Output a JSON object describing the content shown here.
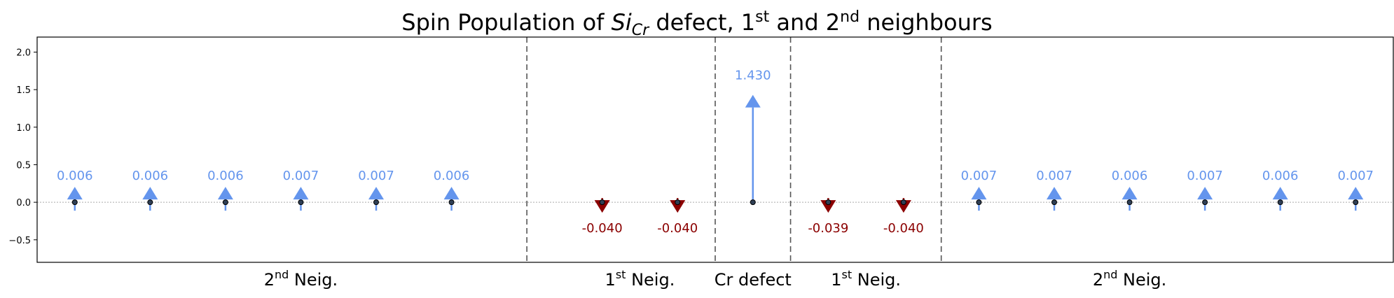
{
  "chart_data": {
    "type": "scatter",
    "title": {
      "prefix": "Spin Population of ",
      "defect_main": "Si",
      "defect_sub": "Cr",
      "middle": " defect, 1",
      "sup1": "st",
      "and_text": " and 2",
      "sup2": "nd",
      "suffix": " neighbours"
    },
    "ylim": [
      -0.8,
      2.2
    ],
    "yticks": [
      {
        "value": 2.0,
        "label": "2.0"
      },
      {
        "value": 1.5,
        "label": "1.5"
      },
      {
        "value": 1.0,
        "label": "1.0"
      },
      {
        "value": 0.5,
        "label": "0.5"
      },
      {
        "value": 0.0,
        "label": "0.0"
      },
      {
        "value": -0.5,
        "label": "−0.5"
      }
    ],
    "xlim": [
      -0.5,
      17.5
    ],
    "points": [
      {
        "x": 0,
        "value": 0.006,
        "label": "0.006"
      },
      {
        "x": 1,
        "value": 0.006,
        "label": "0.006"
      },
      {
        "x": 2,
        "value": 0.006,
        "label": "0.006"
      },
      {
        "x": 3,
        "value": 0.007,
        "label": "0.007"
      },
      {
        "x": 4,
        "value": 0.007,
        "label": "0.007"
      },
      {
        "x": 5,
        "value": 0.006,
        "label": "0.006"
      },
      {
        "x": 7,
        "value": -0.04,
        "label": "-0.040"
      },
      {
        "x": 8,
        "value": -0.04,
        "label": "-0.040"
      },
      {
        "x": 9,
        "value": 1.43,
        "label": "1.430"
      },
      {
        "x": 10,
        "value": -0.039,
        "label": "-0.039"
      },
      {
        "x": 11,
        "value": -0.04,
        "label": "-0.040"
      },
      {
        "x": 12,
        "value": 0.007,
        "label": "0.007"
      },
      {
        "x": 13,
        "value": 0.007,
        "label": "0.007"
      },
      {
        "x": 14,
        "value": 0.006,
        "label": "0.006"
      },
      {
        "x": 15,
        "value": 0.007,
        "label": "0.007"
      },
      {
        "x": 16,
        "value": 0.006,
        "label": "0.006"
      },
      {
        "x": 17,
        "value": 0.007,
        "label": "0.007"
      }
    ],
    "separators": [
      6,
      8.5,
      9.5,
      11.5
    ],
    "regions": [
      {
        "x": 3.0,
        "main": "2",
        "sup": "nd",
        "rest": " Neig."
      },
      {
        "x": 7.5,
        "main": "1",
        "sup": "st",
        "rest": " Neig."
      },
      {
        "x": 9.0,
        "main": "Cr defect",
        "sup": "",
        "rest": ""
      },
      {
        "x": 10.5,
        "main": "1",
        "sup": "st",
        "rest": " Neig."
      },
      {
        "x": 14.0,
        "main": "2",
        "sup": "nd",
        "rest": " Neig."
      }
    ],
    "colors": {
      "positive": "#6495ed",
      "negative": "#8b0000",
      "zero_line": "#aaaaaa",
      "separator": "#555555"
    },
    "grid": false,
    "legend": "none"
  }
}
